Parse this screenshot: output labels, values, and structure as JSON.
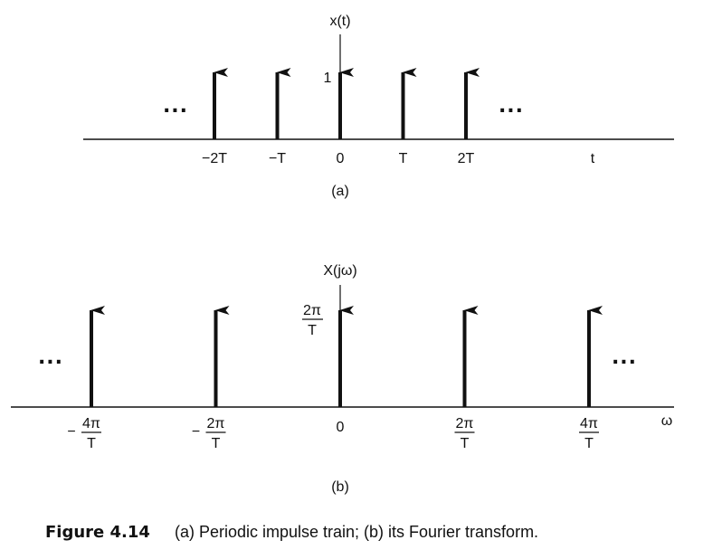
{
  "figure": {
    "caption_label": "Figure 4.14",
    "caption_text": "(a) Periodic impulse train; (b) its Fourier transform."
  },
  "panel_a": {
    "y_axis_label": "x(t)",
    "x_axis_label": "t",
    "impulse_height_label": "1",
    "ticks": [
      "−2T",
      "−T",
      "0",
      "T",
      "2T"
    ],
    "ellipsis_left": "...",
    "ellipsis_right": "...",
    "sublabel": "(a)"
  },
  "panel_b": {
    "y_axis_label": "X(jω)",
    "x_axis_label": "ω",
    "impulse_height_num": "2π",
    "impulse_height_den": "T",
    "ticks": [
      {
        "sign": "−",
        "num": "4π",
        "den": "T"
      },
      {
        "sign": "−",
        "num": "2π",
        "den": "T"
      },
      {
        "sign": "",
        "num": "0",
        "den": ""
      },
      {
        "sign": "",
        "num": "2π",
        "den": "T"
      },
      {
        "sign": "",
        "num": "4π",
        "den": "T"
      }
    ],
    "ellipsis_left": "...",
    "ellipsis_right": "...",
    "sublabel": "(b)"
  },
  "colors": {
    "ink": "#111111",
    "background": "#ffffff"
  },
  "chart_data": [
    {
      "type": "impulse",
      "xlabel": "t",
      "ylabel": "x(t)",
      "x": [
        -2,
        -1,
        0,
        1,
        2
      ],
      "x_unit": "T",
      "values": [
        1,
        1,
        1,
        1,
        1
      ]
    },
    {
      "type": "impulse",
      "xlabel": "ω",
      "ylabel": "X(jω)",
      "x": [
        -2,
        -1,
        0,
        1,
        2
      ],
      "x_unit": "2π/T",
      "values": [
        "2π/T",
        "2π/T",
        "2π/T",
        "2π/T",
        "2π/T"
      ]
    }
  ]
}
